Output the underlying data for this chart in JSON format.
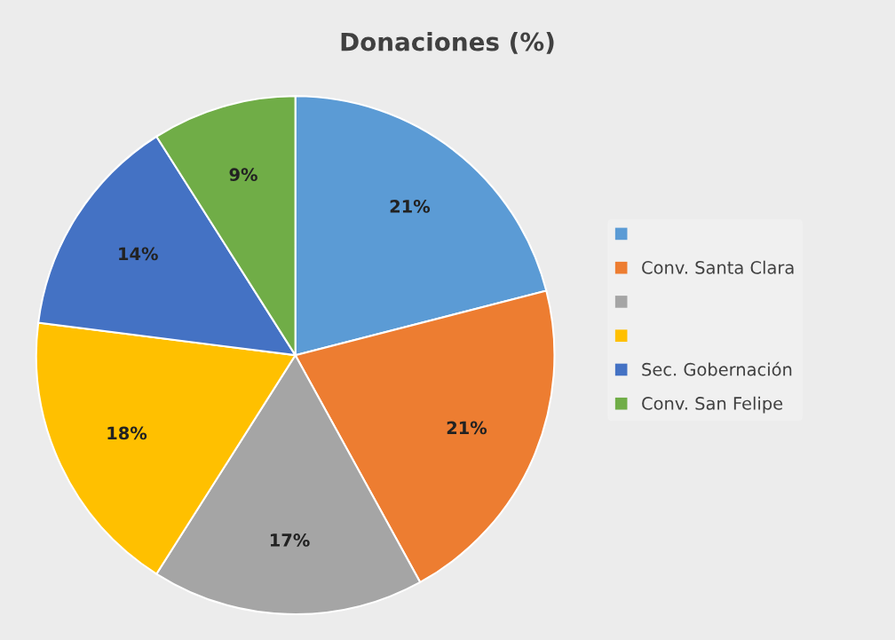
{
  "chart_data": {
    "type": "pie",
    "title": "Donaciones (%)",
    "categories": [
      null,
      "Conv. Santa Clara",
      null,
      null,
      "Sec. Gobernación",
      "Conv. San Felipe"
    ],
    "values": [
      21,
      21,
      17,
      18,
      14,
      9
    ],
    "colors": [
      "#5b9bd5",
      "#ed7d31",
      "#a5a5a5",
      "#ffc000",
      "#4472c4",
      "#70ad47"
    ],
    "value_labels": [
      "21%",
      "21%",
      "17%",
      "18%",
      "14%",
      "9%"
    ],
    "legend": "right"
  }
}
